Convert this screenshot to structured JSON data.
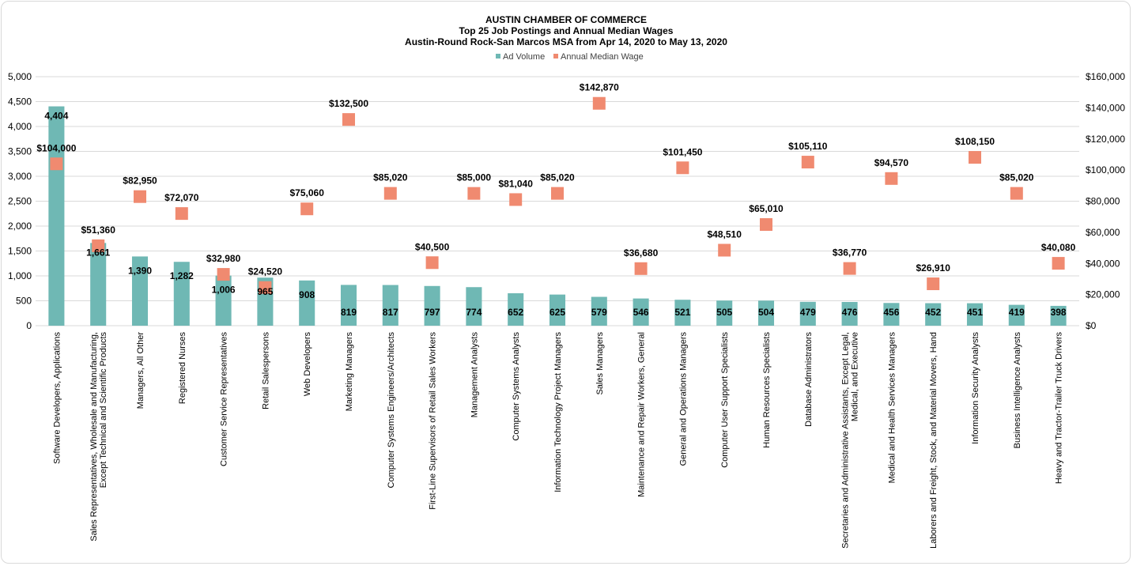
{
  "chart_data": {
    "type": "bar",
    "title": "AUSTIN CHAMBER  OF COMMERCE",
    "subtitle": [
      "Top 25 Job Postings and Annual Median Wages",
      "Austin-Round  Rock-San Marcos MSA from Apr 14, 2020 to May 13, 2020"
    ],
    "legend_position": "top-center",
    "grid": true,
    "categories": [
      [
        "Software Developers, Applications"
      ],
      [
        "Sales Representatives, Wholesale and Manufacturing,",
        "Except Technical and Scientific Products"
      ],
      [
        "Managers, All Other"
      ],
      [
        "Registered Nurses"
      ],
      [
        "Customer Service Representatives"
      ],
      [
        "Retail Salespersons"
      ],
      [
        "Web Developers"
      ],
      [
        "Marketing Managers"
      ],
      [
        "Computer Systems Engineers/Architects"
      ],
      [
        "First-Line Supervisors of Retail Sales Workers"
      ],
      [
        "Management Analysts"
      ],
      [
        "Computer Systems Analysts"
      ],
      [
        "Information Technology Project Managers"
      ],
      [
        "Sales Managers"
      ],
      [
        "Maintenance and Repair Workers, General"
      ],
      [
        "General and Operations Managers"
      ],
      [
        "Computer User Support Specialists"
      ],
      [
        "Human Resources Specialists"
      ],
      [
        "Database Administrators"
      ],
      [
        "Secretaries and Administrative Assistants, Except Legal,",
        "Medical, and Executive"
      ],
      [
        "Medical and Health Services Managers"
      ],
      [
        "Laborers and Freight, Stock, and Material Movers, Hand"
      ],
      [
        "Information Security Analysts"
      ],
      [
        "Business Intelligence Analysts"
      ],
      [
        "Heavy and Tractor-Trailer Truck Drivers"
      ]
    ],
    "series": [
      {
        "name": "Ad Volume",
        "type": "bar",
        "axis": "left",
        "color": "#6fb8b4",
        "values": [
          4404,
          1661,
          1390,
          1282,
          1006,
          965,
          908,
          819,
          817,
          797,
          774,
          652,
          625,
          579,
          546,
          521,
          505,
          504,
          479,
          476,
          456,
          452,
          451,
          419,
          398
        ],
        "labels": [
          "4,404",
          "1,661",
          "1,390",
          "1,282",
          "1,006",
          "965",
          "908",
          "819",
          "817",
          "797",
          "774",
          "652",
          "625",
          "579",
          "546",
          "521",
          "505",
          "504",
          "479",
          "476",
          "456",
          "452",
          "451",
          "419",
          "398"
        ]
      },
      {
        "name": "Annual Median Wage",
        "type": "scatter",
        "axis": "right",
        "color": "#f08a70",
        "values": [
          104000,
          51360,
          82950,
          72070,
          32980,
          24520,
          75060,
          132500,
          85020,
          40500,
          85000,
          81040,
          85020,
          142870,
          36680,
          101450,
          48510,
          65010,
          105110,
          36770,
          94570,
          26910,
          108150,
          85020,
          40080
        ],
        "labels": [
          "$104,000",
          "$51,360",
          "$82,950",
          "$72,070",
          "$32,980",
          "$24,520",
          "$75,060",
          "$132,500",
          "$85,020",
          "$40,500",
          "$85,000",
          "$81,040",
          "$85,020",
          "$142,870",
          "$36,680",
          "$101,450",
          "$48,510",
          "$65,010",
          "$105,110",
          "$36,770",
          "$94,570",
          "$26,910",
          "$108,150",
          "$85,020",
          "$40,080"
        ]
      }
    ],
    "y_left": {
      "ylim": [
        0,
        5000
      ],
      "ticks": [
        "0",
        "500",
        "1,000",
        "1,500",
        "2,000",
        "2,500",
        "3,000",
        "3,500",
        "4,000",
        "4,500",
        "5,000"
      ]
    },
    "y_right": {
      "ylim": [
        0,
        160000
      ],
      "ticks": [
        "$0",
        "$20,000",
        "$40,000",
        "$60,000",
        "$80,000",
        "$100,000",
        "$120,000",
        "$140,000",
        "$160,000"
      ]
    }
  }
}
